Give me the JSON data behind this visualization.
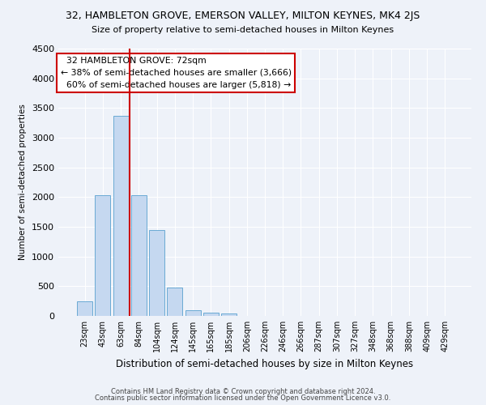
{
  "title": "32, HAMBLETON GROVE, EMERSON VALLEY, MILTON KEYNES, MK4 2JS",
  "subtitle": "Size of property relative to semi-detached houses in Milton Keynes",
  "xlabel": "Distribution of semi-detached houses by size in Milton Keynes",
  "ylabel": "Number of semi-detached properties",
  "footer1": "Contains HM Land Registry data © Crown copyright and database right 2024.",
  "footer2": "Contains public sector information licensed under the Open Government Licence v3.0.",
  "categories": [
    "23sqm",
    "43sqm",
    "63sqm",
    "84sqm",
    "104sqm",
    "124sqm",
    "145sqm",
    "165sqm",
    "185sqm",
    "206sqm",
    "226sqm",
    "246sqm",
    "266sqm",
    "287sqm",
    "307sqm",
    "327sqm",
    "348sqm",
    "368sqm",
    "388sqm",
    "409sqm",
    "429sqm"
  ],
  "bar_values": [
    250,
    2030,
    3370,
    2030,
    1440,
    480,
    100,
    55,
    45,
    0,
    0,
    0,
    0,
    0,
    0,
    0,
    0,
    0,
    0,
    0,
    0
  ],
  "bar_color": "#c5d8f0",
  "bar_edgecolor": "#6aaad4",
  "ylim": [
    0,
    4500
  ],
  "yticks": [
    0,
    500,
    1000,
    1500,
    2000,
    2500,
    3000,
    3500,
    4000,
    4500
  ],
  "property_label": "32 HAMBLETON GROVE: 72sqm",
  "vline_x": 2.5,
  "smaller_pct": "38%",
  "smaller_count": "3,666",
  "larger_pct": "60%",
  "larger_count": "5,818",
  "annotation_box_color": "#ffffff",
  "annotation_box_edgecolor": "#cc0000",
  "vline_color": "#cc0000",
  "background_color": "#eef2f9",
  "grid_color": "#ffffff"
}
